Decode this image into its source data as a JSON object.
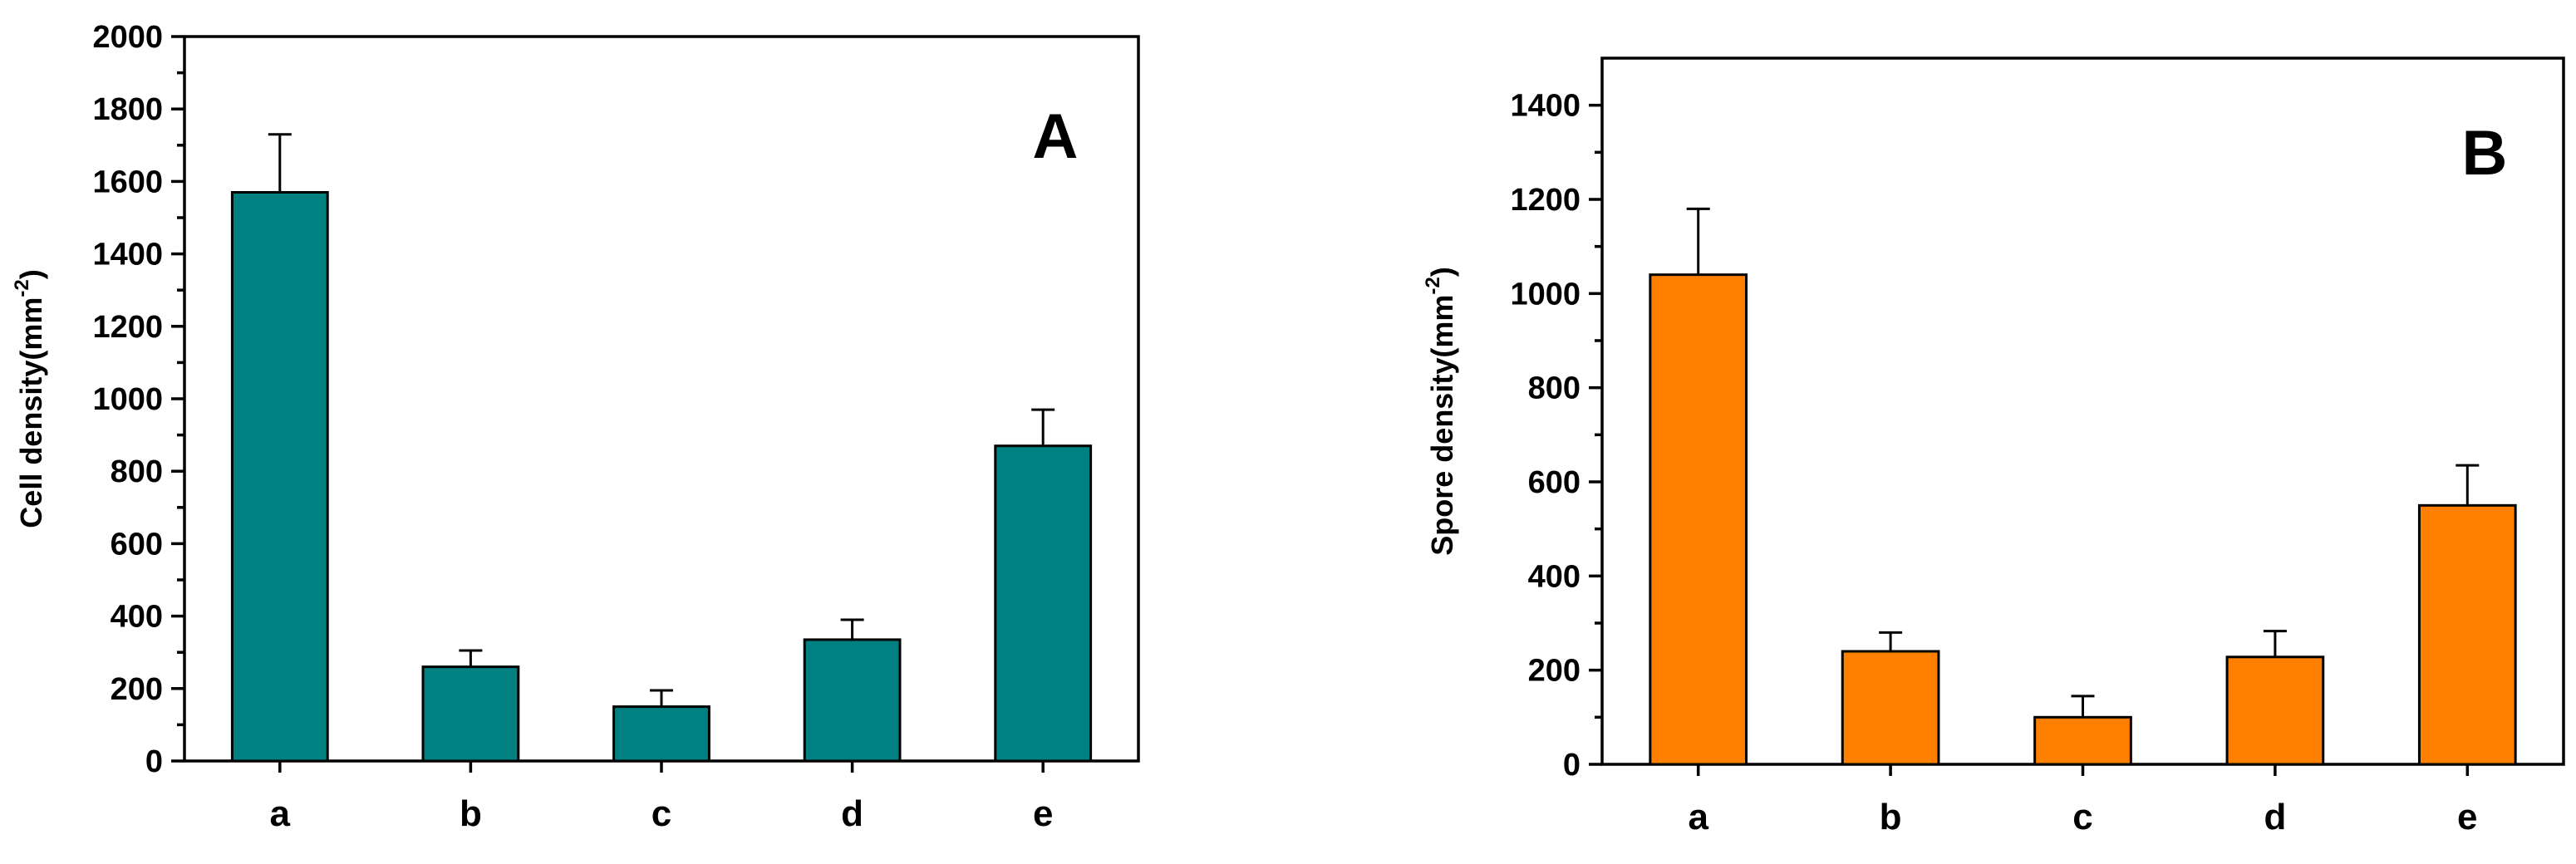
{
  "chart_data": [
    {
      "type": "bar",
      "panel": "A",
      "ylabel_main": "Cell density(mm",
      "ylabel_sup": "-2",
      "ylabel_close": ")",
      "categories": [
        "a",
        "b",
        "c",
        "d",
        "e"
      ],
      "values": [
        1570,
        260,
        150,
        335,
        870
      ],
      "errors": [
        160,
        45,
        45,
        55,
        100
      ],
      "ylim": [
        0,
        2000
      ],
      "yticks": [
        0,
        200,
        400,
        600,
        800,
        1000,
        1200,
        1400,
        1600,
        1800,
        2000
      ],
      "color": "#008080"
    },
    {
      "type": "bar",
      "panel": "B",
      "ylabel_main": "Spore density(mm",
      "ylabel_sup": "-2",
      "ylabel_close": ")",
      "categories": [
        "a",
        "b",
        "c",
        "d",
        "e"
      ],
      "values": [
        1040,
        240,
        100,
        228,
        550
      ],
      "errors": [
        140,
        40,
        45,
        55,
        85
      ],
      "ylim": [
        0,
        1500
      ],
      "yticks": [
        0,
        200,
        400,
        600,
        800,
        1000,
        1200,
        1400
      ],
      "color": "#FF8000"
    }
  ]
}
